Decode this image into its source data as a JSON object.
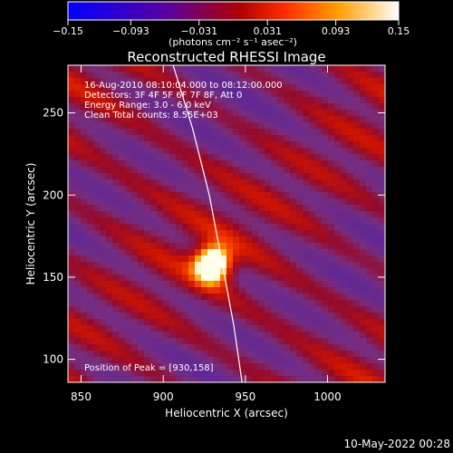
{
  "chart_data": {
    "type": "heatmap",
    "title": "Reconstructed RHESSI Image",
    "xlabel": "Heliocentric X (arcsec)",
    "ylabel": "Heliocentric Y (arcsec)",
    "xlim": [
      842,
      1035
    ],
    "ylim": [
      86,
      279
    ],
    "x_ticks": [
      850,
      900,
      950,
      1000
    ],
    "y_ticks": [
      100,
      150,
      200,
      250
    ],
    "x_tick_labels": [
      "850",
      "900",
      "950",
      "1000"
    ],
    "y_tick_labels": [
      "100",
      "150",
      "200",
      "250"
    ],
    "colorbar": {
      "range": [
        -0.15,
        0.15
      ],
      "tick_values": [
        -0.15,
        -0.093,
        -0.031,
        0.031,
        0.093,
        0.15
      ],
      "tick_labels": [
        "−0.15",
        "−0.093",
        "−0.031",
        "0.031",
        "0.093",
        "0.15"
      ],
      "unit_label": "(photons cm⁻² s⁻¹ asec⁻²)",
      "colors": [
        "#0000ff",
        "#5a00a0",
        "#b00000",
        "#ff3000",
        "#ffa000",
        "#ffffff"
      ]
    },
    "info_lines": [
      "16-Aug-2010 08:10:04.000 to 08:12:00.000",
      "Detectors: 3F 4F 5F 6F 7F 8F, Att 0",
      "Energy Range: 3.0 - 6.0 keV",
      "Clean     Total counts: 8.55E+03"
    ],
    "peak_label": "Position of Peak = [930,158]",
    "peak": {
      "x": 930,
      "y": 158
    },
    "limb": [
      [
        906,
        279
      ],
      [
        918,
        240
      ],
      [
        928,
        200
      ],
      [
        936,
        158
      ],
      [
        943,
        120
      ],
      [
        948,
        86
      ]
    ]
  },
  "footer": {
    "timestamp": "10-May-2022 00:28"
  }
}
